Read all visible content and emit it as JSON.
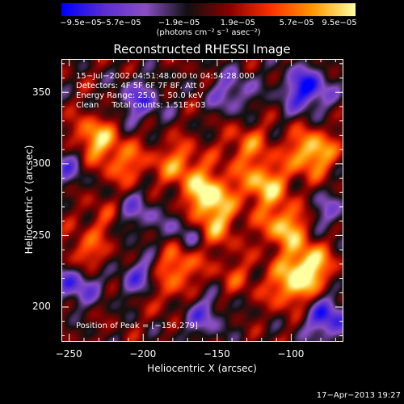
{
  "chart_data": {
    "type": "heatmap",
    "title": "Reconstructed RHESSI Image",
    "xlabel": "Heliocentric X (arcsec)",
    "ylabel": "Heliocentric Y (arcsec)",
    "xlim": [
      -255,
      -65
    ],
    "ylim": [
      176,
      373
    ],
    "x_ticks": [
      {
        "value": -250,
        "label": "−250"
      },
      {
        "value": -200,
        "label": "−200"
      },
      {
        "value": -150,
        "label": "−150"
      },
      {
        "value": -100,
        "label": "−100"
      }
    ],
    "y_ticks": [
      {
        "value": 350,
        "label": "350"
      },
      {
        "value": 300,
        "label": "300"
      },
      {
        "value": 250,
        "label": "250"
      },
      {
        "value": 200,
        "label": "200"
      }
    ],
    "colorbar": {
      "range": [
        -9.5e-05,
        9.5e-05
      ],
      "ticks": [
        {
          "value": -9.5e-05,
          "label": "−9.5e−05"
        },
        {
          "value": -5.7e-05,
          "label": "−5.7e−05"
        },
        {
          "value": -1.9e-05,
          "label": "−1.9e−05"
        },
        {
          "value": 1.9e-05,
          "label": "1.9e−05"
        },
        {
          "value": 5.7e-05,
          "label": "5.7e−05"
        },
        {
          "value": 9.5e-05,
          "label": "9.5e−05"
        }
      ],
      "units": "(photons cm⁻² s⁻¹ asec⁻²)",
      "colormap": [
        "#0000ff",
        "#5a2ed2",
        "#8a4fc4",
        "#111111",
        "#8b0000",
        "#ff3300",
        "#ff9900",
        "#ffffa0"
      ]
    },
    "annotations": {
      "line1": "15−Jul−2002 04:51:48.000 to 04:54:28.000",
      "line2": "Detectors: 4F 5F 6F 7F 8F, Att 0",
      "line3": "Energy Range: 25.0 − 50.0 keV",
      "line4": "Clean     Total counts: 1.51E+03",
      "peak": "Position of Peak = [−156,279]"
    },
    "hotspots": [
      {
        "x": -233,
        "y": 317,
        "value": 8e-05
      },
      {
        "x": -212,
        "y": 300,
        "value": 5e-05
      },
      {
        "x": -176,
        "y": 300,
        "value": 6e-05
      },
      {
        "x": -156,
        "y": 279,
        "value": 9.5e-05
      },
      {
        "x": -153,
        "y": 257,
        "value": 7e-05
      },
      {
        "x": -130,
        "y": 312,
        "value": 5e-05
      },
      {
        "x": -118,
        "y": 285,
        "value": 8e-05
      },
      {
        "x": -86,
        "y": 308,
        "value": 9e-05
      },
      {
        "x": -104,
        "y": 256,
        "value": 8e-05
      },
      {
        "x": -88,
        "y": 229,
        "value": 9e-05
      },
      {
        "x": -100,
        "y": 214,
        "value": 7e-05
      },
      {
        "x": -176,
        "y": 232,
        "value": 7e-05
      },
      {
        "x": -240,
        "y": 234,
        "value": 6e-05
      },
      {
        "x": -188,
        "y": 212,
        "value": 5e-05
      },
      {
        "x": -225,
        "y": 262,
        "value": 3.5e-05
      },
      {
        "x": -137,
        "y": 222,
        "value": 3e-05
      }
    ],
    "coldspots": [
      {
        "x": -90,
        "y": 352,
        "value": -9e-05
      },
      {
        "x": -202,
        "y": 344,
        "value": -6e-05
      },
      {
        "x": -252,
        "y": 300,
        "value": -5e-05
      },
      {
        "x": -245,
        "y": 218,
        "value": -8e-05
      },
      {
        "x": -200,
        "y": 220,
        "value": -7e-05
      },
      {
        "x": -160,
        "y": 194,
        "value": -5e-05
      },
      {
        "x": -75,
        "y": 192,
        "value": -8e-05
      },
      {
        "x": -140,
        "y": 350,
        "value": -5e-05
      },
      {
        "x": -170,
        "y": 250,
        "value": -6e-05
      },
      {
        "x": -206,
        "y": 266,
        "value": -5e-05
      },
      {
        "x": -75,
        "y": 265,
        "value": -4e-05
      }
    ],
    "peak_position": {
      "x": -156,
      "y": 279
    }
  },
  "timestamp": "17−Apr−2013 19:27"
}
